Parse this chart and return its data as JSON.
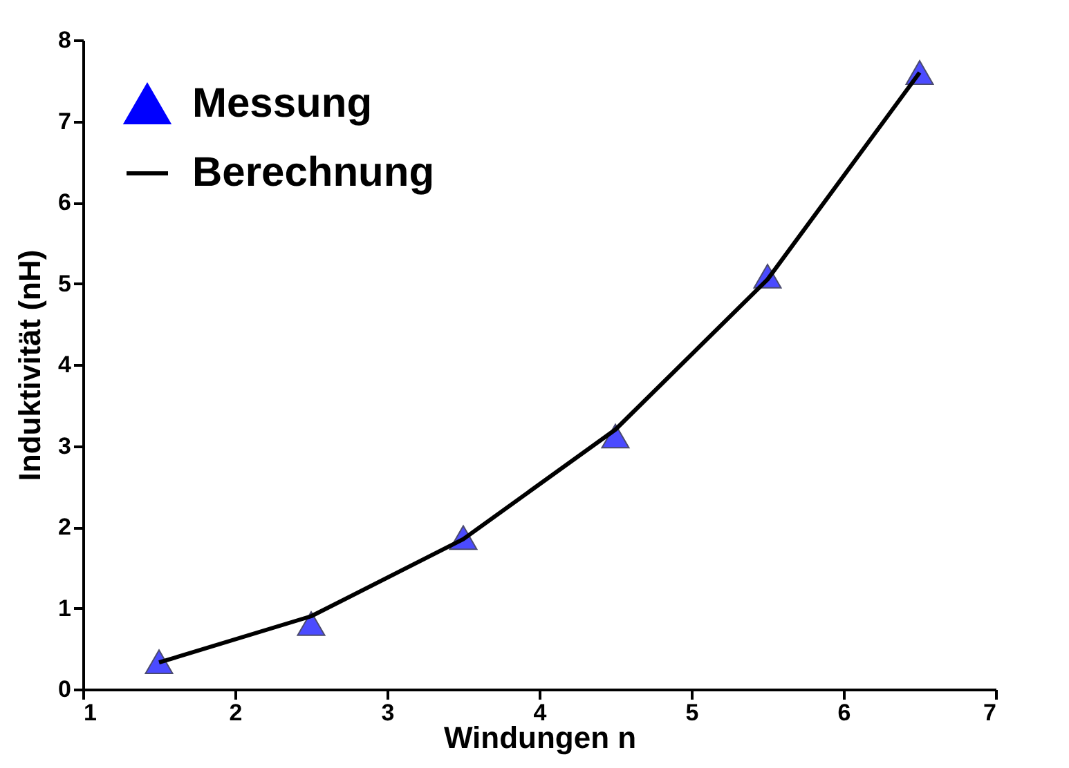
{
  "chart_data": {
    "type": "line",
    "xlabel": "Windungen n",
    "ylabel": "Induktivität (nH)",
    "xlim": [
      1,
      7
    ],
    "xticks": [
      1,
      2,
      3,
      4,
      5,
      6,
      7
    ],
    "ylim": [
      0,
      8
    ],
    "yticks": [
      0,
      1,
      2,
      3,
      4,
      5,
      6,
      7,
      8
    ],
    "grid": false,
    "legend": "top left",
    "series": [
      {
        "name": "Messung",
        "type": "scatter",
        "marker": "triangle",
        "color": "#0000ff",
        "x": [
          1.5,
          2.5,
          3.5,
          4.5,
          5.5,
          6.5
        ],
        "values": [
          0.34,
          0.81,
          1.87,
          3.12,
          5.09,
          7.6
        ]
      },
      {
        "name": "Berechnung",
        "type": "line",
        "line_style": "solid",
        "marker": "none",
        "color": "#000000",
        "x": [
          1.5,
          2.5,
          3.5,
          4.5,
          5.5,
          6.5
        ],
        "values": [
          0.33,
          0.9,
          1.85,
          3.2,
          5.05,
          7.6
        ]
      }
    ]
  }
}
